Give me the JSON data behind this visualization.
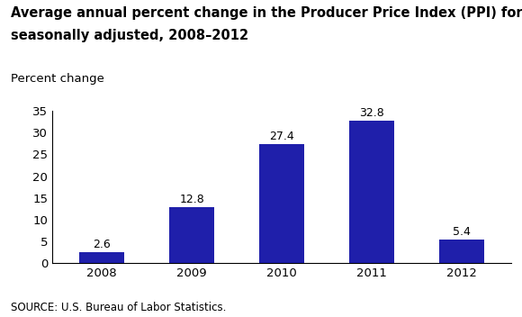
{
  "categories": [
    "2008",
    "2009",
    "2010",
    "2011",
    "2012"
  ],
  "values": [
    2.6,
    12.8,
    27.4,
    32.8,
    5.4
  ],
  "bar_color": "#1f1faa",
  "title_line1": "Average annual percent change in the Producer Price Index (PPI) for gold ores, not",
  "title_line2": "seasonally adjusted, 2008–2012",
  "ylabel_text": "Percent change",
  "source_text": "SOURCE: U.S. Bureau of Labor Statistics.",
  "ylim": [
    0,
    35
  ],
  "yticks": [
    0,
    5,
    10,
    15,
    20,
    25,
    30,
    35
  ],
  "title_fontsize": 10.5,
  "ylabel_fontsize": 9.5,
  "tick_fontsize": 9.5,
  "value_label_fontsize": 9,
  "source_fontsize": 8.5,
  "bar_width": 0.5,
  "background_color": "#ffffff"
}
